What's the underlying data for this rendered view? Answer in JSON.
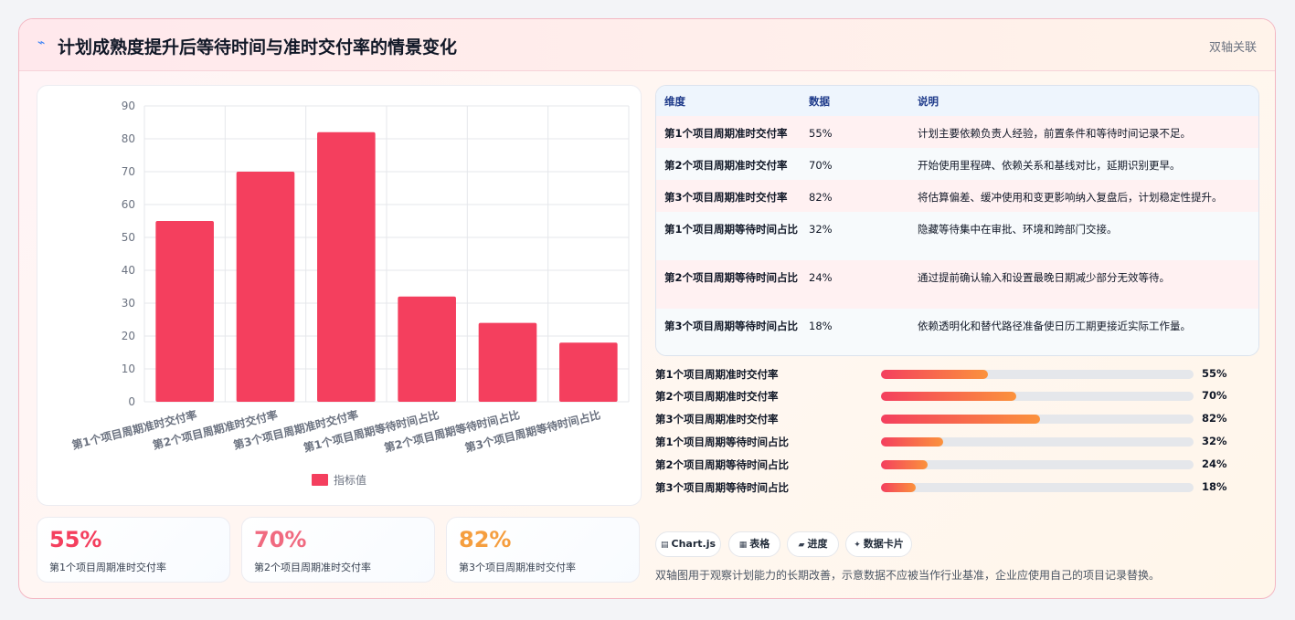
{
  "header": {
    "icon": "sparkle-icon",
    "title": "计划成熟度提升后等待时间与准时交付率的情景变化",
    "tag": "双轴关联"
  },
  "chart_data": {
    "type": "bar",
    "categories": [
      "第1个项目周期准时交付率",
      "第2个项目周期准时交付率",
      "第3个项目周期准时交付率",
      "第1个项目周期等待时间占比",
      "第2个项目周期等待时间占比",
      "第3个项目周期等待时间占比"
    ],
    "series": [
      {
        "name": "指标值",
        "values": [
          55,
          70,
          82,
          32,
          24,
          18
        ],
        "color": "#f43f5e"
      }
    ],
    "ylim": [
      0,
      90
    ],
    "yticks": [
      "0",
      "10",
      "20",
      "30",
      "40",
      "50",
      "60",
      "70",
      "80",
      "90"
    ],
    "grid": true,
    "legend": "bottom"
  },
  "kpis": [
    {
      "value": "55%",
      "label": "第1个项目周期准时交付率",
      "color": "#f43f5e"
    },
    {
      "value": "70%",
      "label": "第2个项目周期准时交付率",
      "color": "#f06a80"
    },
    {
      "value": "82%",
      "label": "第3个项目周期准时交付率",
      "color": "#f59e3f"
    }
  ],
  "table": {
    "headers": [
      "维度",
      "数据",
      "说明"
    ],
    "rows": [
      [
        "第1个项目周期准时交付率",
        "55%",
        "计划主要依赖负责人经验，前置条件和等待时间记录不足。"
      ],
      [
        "第2个项目周期准时交付率",
        "70%",
        "开始使用里程碑、依赖关系和基线对比，延期识别更早。"
      ],
      [
        "第3个项目周期准时交付率",
        "82%",
        "将估算偏差、缓冲使用和变更影响纳入复盘后，计划稳定性提升。"
      ],
      [
        "第1个项目周期等待时间占比",
        "32%",
        "隐藏等待集中在审批、环境和跨部门交接。"
      ],
      [
        "第2个项目周期等待时间占比",
        "24%",
        "通过提前确认输入和设置最晚日期减少部分无效等待。"
      ],
      [
        "第3个项目周期等待时间占比",
        "18%",
        "依赖透明化和替代路径准备使日历工期更接近实际工作量。"
      ]
    ]
  },
  "progress": [
    {
      "label": "第1个项目周期准时交付率",
      "value": 55,
      "text": "55%"
    },
    {
      "label": "第2个项目周期准时交付率",
      "value": 70,
      "text": "70%"
    },
    {
      "label": "第3个项目周期准时交付率",
      "value": 82,
      "text": "82%"
    },
    {
      "label": "第1个项目周期等待时间占比",
      "value": 32,
      "text": "32%"
    },
    {
      "label": "第2个项目周期等待时间占比",
      "value": 24,
      "text": "24%"
    },
    {
      "label": "第3个项目周期等待时间占比",
      "value": 18,
      "text": "18%"
    }
  ],
  "chips": [
    {
      "icon": "chart-icon",
      "label": "Chart.js"
    },
    {
      "icon": "table-icon",
      "label": "表格"
    },
    {
      "icon": "progress-icon",
      "label": "进度"
    },
    {
      "icon": "sparkle-icon",
      "label": "数据卡片"
    }
  ],
  "note": "双轴图用于观察计划能力的长期改善，示意数据不应被当作行业基准，企业应使用自己的项目记录替换。"
}
